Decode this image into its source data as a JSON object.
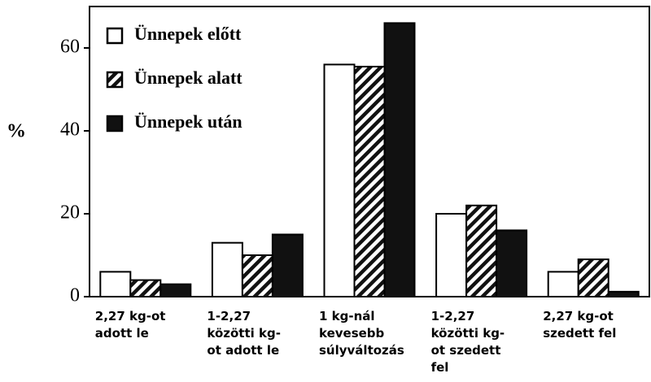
{
  "chart_data": {
    "type": "bar",
    "y_label": "%",
    "categories": [
      "2,27 kg-ot\nadott le",
      "1-2,27\nközötti kg-\not adott le",
      "1 kg-nál\nkevesebb\nsúlyváltozás",
      "1-2,27\nközötti kg-\not szedett\nfel",
      "2,27 kg-ot\nszedett fel"
    ],
    "series": [
      {
        "name": "Ünnepek előtt",
        "color": "#ffffff",
        "pattern": "solid",
        "values": [
          6,
          13,
          56,
          20,
          6
        ]
      },
      {
        "name": "Ünnepek alatt",
        "color": "#ffffff",
        "pattern": "hatch",
        "values": [
          4,
          10,
          55.5,
          22,
          9
        ]
      },
      {
        "name": "Ünnepek után",
        "color": "#111111",
        "pattern": "solid",
        "values": [
          3,
          15,
          66,
          16,
          1.2
        ]
      }
    ],
    "ylim": [
      0,
      70
    ],
    "yticks": [
      0,
      20,
      40,
      60
    ],
    "legend": "upper-left"
  }
}
